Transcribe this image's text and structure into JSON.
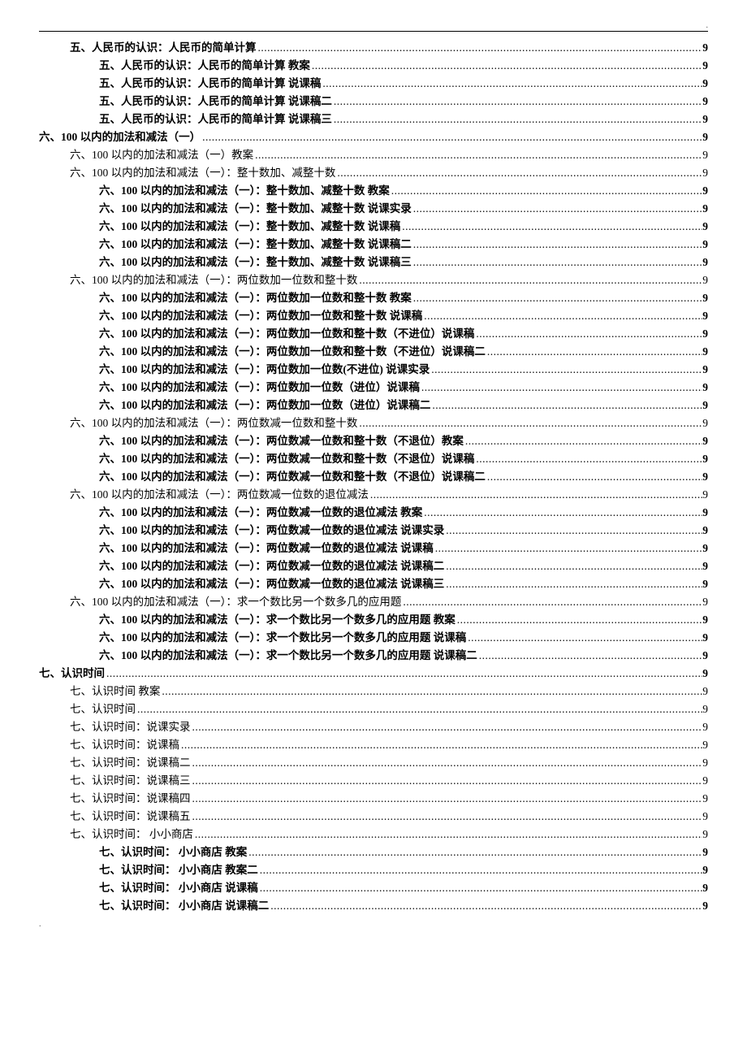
{
  "page_number_all": "9",
  "entries": [
    {
      "indent": 1,
      "bold": true,
      "label": "五、人民币的认识：人民币的简单计算 "
    },
    {
      "indent": 2,
      "bold": true,
      "label": "五、人民币的认识：人民币的简单计算  教案 "
    },
    {
      "indent": 2,
      "bold": true,
      "label": "五、人民币的认识：人民币的简单计算  说课稿"
    },
    {
      "indent": 2,
      "bold": true,
      "label": "五、人民币的认识：人民币的简单计算  说课稿二 "
    },
    {
      "indent": 2,
      "bold": true,
      "label": "五、人民币的认识：人民币的简单计算  说课稿三 "
    },
    {
      "indent": 0,
      "bold": true,
      "label": "六、100 以内的加法和减法（一） "
    },
    {
      "indent": 1,
      "bold": false,
      "label": "六、100 以内的加法和减法（一）教案 "
    },
    {
      "indent": 1,
      "bold": false,
      "label": "六、100 以内的加法和减法（一）：整十数加、减整十数 "
    },
    {
      "indent": 2,
      "bold": true,
      "label": "六、100 以内的加法和减法（一）：整十数加、减整十数  教案 "
    },
    {
      "indent": 2,
      "bold": true,
      "label": "六、100 以内的加法和减法（一）：整十数加、减整十数  说课实录 "
    },
    {
      "indent": 2,
      "bold": true,
      "label": "六、100 以内的加法和减法（一）：整十数加、减整十数    说课稿"
    },
    {
      "indent": 2,
      "bold": true,
      "label": "六、100 以内的加法和减法（一）：整十数加、减整十数  说课稿二 "
    },
    {
      "indent": 2,
      "bold": true,
      "label": "六、100 以内的加法和减法（一）：整十数加、减整十数  说课稿三 "
    },
    {
      "indent": 1,
      "bold": false,
      "label": "六、100 以内的加法和减法（一）：两位数加一位数和整十数 "
    },
    {
      "indent": 2,
      "bold": true,
      "label": "六、100 以内的加法和减法（一）：两位数加一位数和整十数  教案 "
    },
    {
      "indent": 2,
      "bold": true,
      "label": "六、100 以内的加法和减法（一）：两位数加一位数和整十数  说课稿 "
    },
    {
      "indent": 2,
      "bold": true,
      "label": "六、100 以内的加法和减法（一）：两位数加一位数和整十数（不进位）说课稿"
    },
    {
      "indent": 2,
      "bold": true,
      "label": "六、100 以内的加法和减法（一）：两位数加一位数和整十数（不进位）说课稿二 "
    },
    {
      "indent": 2,
      "bold": true,
      "label": "六、100 以内的加法和减法（一）：两位数加一位数(不进位)  说课实录 "
    },
    {
      "indent": 2,
      "bold": true,
      "label": "六、100 以内的加法和减法（一）：两位数加一位数（进位）说课稿"
    },
    {
      "indent": 2,
      "bold": true,
      "label": "六、100 以内的加法和减法（一）：两位数加一位数（进位）说课稿二 "
    },
    {
      "indent": 1,
      "bold": false,
      "label": "六、100 以内的加法和减法（一）：两位数减一位数和整十数 "
    },
    {
      "indent": 2,
      "bold": true,
      "label": "六、100 以内的加法和减法（一）：两位数减一位数和整十数（不退位）教案 "
    },
    {
      "indent": 2,
      "bold": true,
      "label": "六、100 以内的加法和减法（一）：两位数减一位数和整十数（不退位）说课稿"
    },
    {
      "indent": 2,
      "bold": true,
      "label": "六、100 以内的加法和减法（一）：两位数减一位数和整十数（不退位）说课稿二 "
    },
    {
      "indent": 1,
      "bold": false,
      "label": "六、100 以内的加法和减法（一）：两位数减一位数的退位减法 "
    },
    {
      "indent": 2,
      "bold": true,
      "label": "六、100 以内的加法和减法（一）：两位数减一位数的退位减法  教案 "
    },
    {
      "indent": 2,
      "bold": true,
      "label": "六、100 以内的加法和减法（一）：两位数减一位数的退位减法  说课实录 "
    },
    {
      "indent": 2,
      "bold": true,
      "label": "六、100 以内的加法和减法（一）：两位数减一位数的退位减法  说课稿"
    },
    {
      "indent": 2,
      "bold": true,
      "label": "六、100 以内的加法和减法（一）：两位数减一位数的退位减法  说课稿二 "
    },
    {
      "indent": 2,
      "bold": true,
      "label": "六、100 以内的加法和减法（一）：两位数减一位数的退位减法  说课稿三 "
    },
    {
      "indent": 1,
      "bold": false,
      "label": "六、100 以内的加法和减法（一）：求一个数比另一个数多几的应用题 "
    },
    {
      "indent": 2,
      "bold": true,
      "label": "六、100 以内的加法和减法（一）：求一个数比另一个数多几的应用题  教案 "
    },
    {
      "indent": 2,
      "bold": true,
      "label": "六、100 以内的加法和减法（一）：求一个数比另一个数多几的应用题  说课稿"
    },
    {
      "indent": 2,
      "bold": true,
      "label": "六、100 以内的加法和减法（一）：求一个数比另一个数多几的应用题  说课稿二 "
    },
    {
      "indent": 0,
      "bold": true,
      "label": "七、认识时间 "
    },
    {
      "indent": 1,
      "bold": false,
      "label": "七、认识时间  教案 "
    },
    {
      "indent": 1,
      "bold": false,
      "label": "七、认识时间 "
    },
    {
      "indent": 1,
      "bold": false,
      "label": "七、认识时间：说课实录 "
    },
    {
      "indent": 1,
      "bold": false,
      "label": "七、认识时间：说课稿 "
    },
    {
      "indent": 1,
      "bold": false,
      "label": "七、认识时间：说课稿二 "
    },
    {
      "indent": 1,
      "bold": false,
      "label": "七、认识时间：说课稿三 "
    },
    {
      "indent": 1,
      "bold": false,
      "label": "七、认识时间：说课稿四 "
    },
    {
      "indent": 1,
      "bold": false,
      "label": "七、认识时间：说课稿五 "
    },
    {
      "indent": 1,
      "bold": false,
      "label": "七、认识时间：   小小商店 "
    },
    {
      "indent": 2,
      "bold": true,
      "label": "七、认识时间：   小小商店  教案 "
    },
    {
      "indent": 2,
      "bold": true,
      "label": "七、认识时间：   小小商店  教案二 "
    },
    {
      "indent": 2,
      "bold": true,
      "label": "七、认识时间：   小小商店  说课稿"
    },
    {
      "indent": 2,
      "bold": true,
      "label": "七、认识时间：   小小商店  说课稿二 "
    }
  ]
}
